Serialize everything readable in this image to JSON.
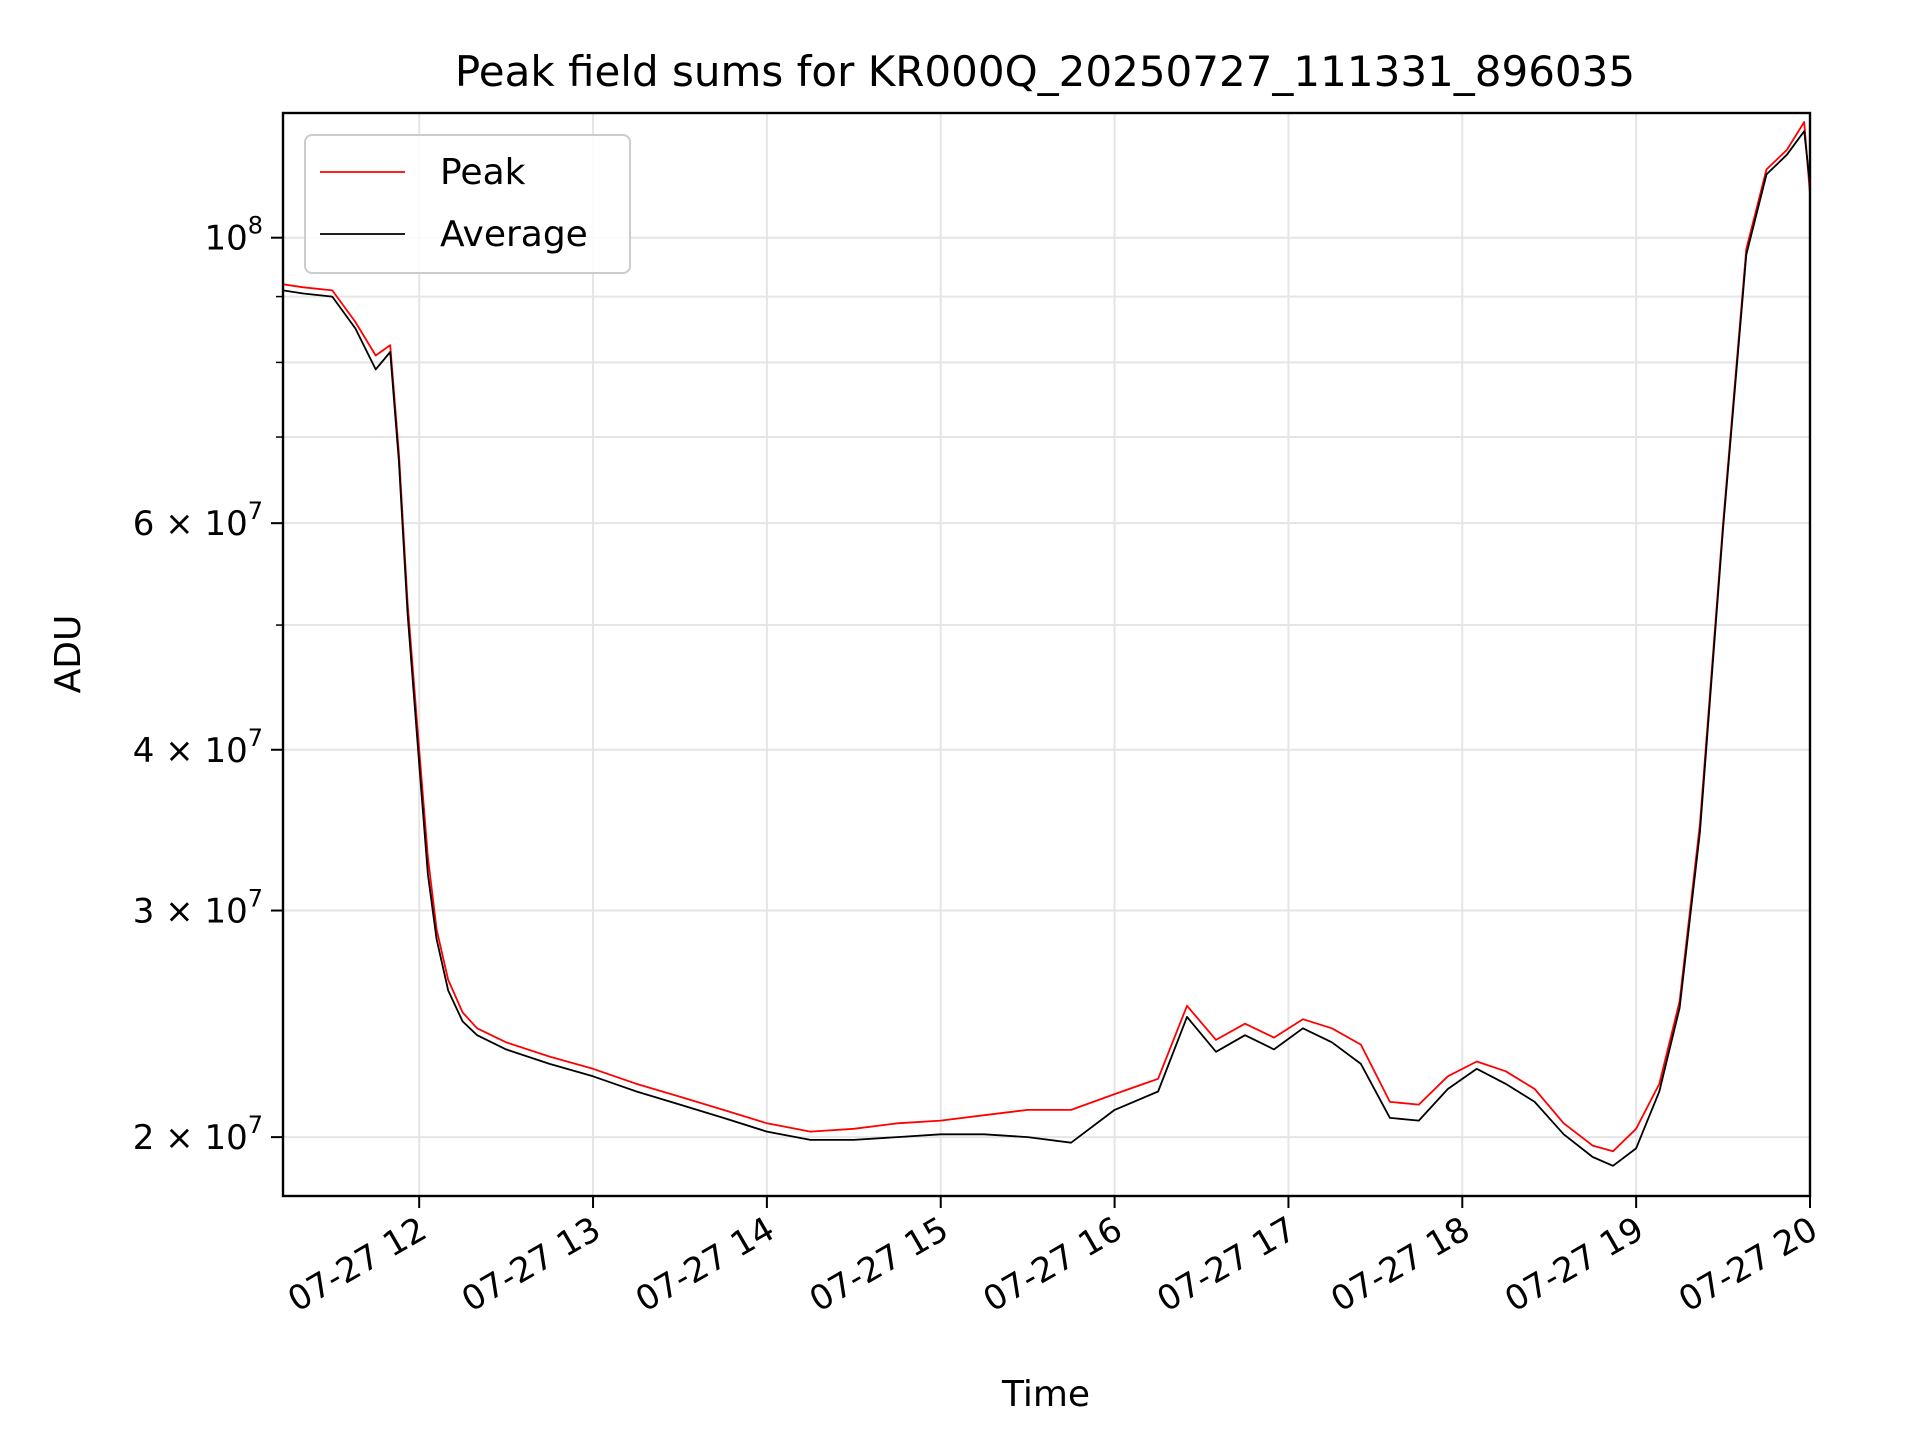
{
  "chart_data": {
    "type": "line",
    "title": "Peak field sums for KR000Q_20250727_111331_896035",
    "xlabel": "Time",
    "ylabel": "ADU",
    "yscale": "log",
    "grid": true,
    "legend_placement": "top-left",
    "xlim": [
      "2025-07-27T11:13",
      "2025-07-27T20:00"
    ],
    "ylim": [
      18000000,
      125000000
    ],
    "x_ticks": [
      "2025-07-27T12:00",
      "2025-07-27T13:00",
      "2025-07-27T14:00",
      "2025-07-27T15:00",
      "2025-07-27T16:00",
      "2025-07-27T17:00",
      "2025-07-27T18:00",
      "2025-07-27T19:00",
      "2025-07-27T20:00"
    ],
    "x_tick_labels": [
      "07-27 12",
      "07-27 13",
      "07-27 14",
      "07-27 15",
      "07-27 16",
      "07-27 17",
      "07-27 18",
      "07-27 19",
      "07-27 20"
    ],
    "y_ticks": [
      {
        "value": 20000000,
        "mantissa": "2",
        "exponent": "7"
      },
      {
        "value": 30000000,
        "mantissa": "3",
        "exponent": "7"
      },
      {
        "value": 40000000,
        "mantissa": "4",
        "exponent": "7"
      },
      {
        "value": 60000000,
        "mantissa": "6",
        "exponent": "7"
      },
      {
        "value": 100000000,
        "mantissa": "",
        "exponent": "8"
      }
    ],
    "y_minor_ticks": [
      50000000,
      70000000,
      80000000,
      90000000
    ],
    "series": [
      {
        "name": "Peak",
        "color": "#ff0000",
        "x": [
          "2025-07-27T11:13",
          "2025-07-27T11:20",
          "2025-07-27T11:30",
          "2025-07-27T11:38",
          "2025-07-27T11:45",
          "2025-07-27T11:50",
          "2025-07-27T11:53",
          "2025-07-27T11:56",
          "2025-07-27T12:00",
          "2025-07-27T12:03",
          "2025-07-27T12:06",
          "2025-07-27T12:10",
          "2025-07-27T12:15",
          "2025-07-27T12:20",
          "2025-07-27T12:30",
          "2025-07-27T12:45",
          "2025-07-27T13:00",
          "2025-07-27T13:15",
          "2025-07-27T13:30",
          "2025-07-27T13:45",
          "2025-07-27T14:00",
          "2025-07-27T14:15",
          "2025-07-27T14:30",
          "2025-07-27T14:45",
          "2025-07-27T15:00",
          "2025-07-27T15:15",
          "2025-07-27T15:30",
          "2025-07-27T15:45",
          "2025-07-27T16:00",
          "2025-07-27T16:15",
          "2025-07-27T16:25",
          "2025-07-27T16:35",
          "2025-07-27T16:45",
          "2025-07-27T16:55",
          "2025-07-27T17:05",
          "2025-07-27T17:15",
          "2025-07-27T17:25",
          "2025-07-27T17:35",
          "2025-07-27T17:45",
          "2025-07-27T17:55",
          "2025-07-27T18:05",
          "2025-07-27T18:15",
          "2025-07-27T18:25",
          "2025-07-27T18:35",
          "2025-07-27T18:45",
          "2025-07-27T18:52",
          "2025-07-27T19:00",
          "2025-07-27T19:08",
          "2025-07-27T19:15",
          "2025-07-27T19:22",
          "2025-07-27T19:30",
          "2025-07-27T19:38",
          "2025-07-27T19:45",
          "2025-07-27T19:52",
          "2025-07-27T19:58",
          "2025-07-27T20:00"
        ],
        "values": [
          92000000,
          91500000,
          91000000,
          86000000,
          81000000,
          82500000,
          68000000,
          52000000,
          40000000,
          33000000,
          29000000,
          26500000,
          25000000,
          24300000,
          23700000,
          23100000,
          22600000,
          22000000,
          21500000,
          21000000,
          20500000,
          20200000,
          20300000,
          20500000,
          20600000,
          20800000,
          21000000,
          21000000,
          21600000,
          22200000,
          25300000,
          23800000,
          24500000,
          23900000,
          24700000,
          24300000,
          23600000,
          21300000,
          21200000,
          22300000,
          22900000,
          22500000,
          21800000,
          20500000,
          19700000,
          19500000,
          20300000,
          22000000,
          25500000,
          35000000,
          60000000,
          98000000,
          113000000,
          117000000,
          123000000,
          108000000
        ]
      },
      {
        "name": "Average",
        "color": "#000000",
        "x": [
          "2025-07-27T11:13",
          "2025-07-27T11:20",
          "2025-07-27T11:30",
          "2025-07-27T11:38",
          "2025-07-27T11:45",
          "2025-07-27T11:50",
          "2025-07-27T11:53",
          "2025-07-27T11:56",
          "2025-07-27T12:00",
          "2025-07-27T12:03",
          "2025-07-27T12:06",
          "2025-07-27T12:10",
          "2025-07-27T12:15",
          "2025-07-27T12:20",
          "2025-07-27T12:30",
          "2025-07-27T12:45",
          "2025-07-27T13:00",
          "2025-07-27T13:15",
          "2025-07-27T13:30",
          "2025-07-27T13:45",
          "2025-07-27T14:00",
          "2025-07-27T14:15",
          "2025-07-27T14:30",
          "2025-07-27T14:45",
          "2025-07-27T15:00",
          "2025-07-27T15:15",
          "2025-07-27T15:30",
          "2025-07-27T15:45",
          "2025-07-27T16:00",
          "2025-07-27T16:15",
          "2025-07-27T16:25",
          "2025-07-27T16:35",
          "2025-07-27T16:45",
          "2025-07-27T16:55",
          "2025-07-27T17:05",
          "2025-07-27T17:15",
          "2025-07-27T17:25",
          "2025-07-27T17:35",
          "2025-07-27T17:45",
          "2025-07-27T17:55",
          "2025-07-27T18:05",
          "2025-07-27T18:15",
          "2025-07-27T18:25",
          "2025-07-27T18:35",
          "2025-07-27T18:45",
          "2025-07-27T18:52",
          "2025-07-27T19:00",
          "2025-07-27T19:08",
          "2025-07-27T19:15",
          "2025-07-27T19:22",
          "2025-07-27T19:30",
          "2025-07-27T19:38",
          "2025-07-27T19:45",
          "2025-07-27T19:52",
          "2025-07-27T19:58",
          "2025-07-27T20:00"
        ],
        "values": [
          91000000,
          90500000,
          90000000,
          85000000,
          79000000,
          81500000,
          67000000,
          51000000,
          39000000,
          32000000,
          28500000,
          26000000,
          24600000,
          24000000,
          23400000,
          22800000,
          22300000,
          21700000,
          21200000,
          20700000,
          20200000,
          19900000,
          19900000,
          20000000,
          20100000,
          20100000,
          20000000,
          19800000,
          21000000,
          21700000,
          24800000,
          23300000,
          24000000,
          23400000,
          24300000,
          23700000,
          22800000,
          20700000,
          20600000,
          21800000,
          22600000,
          22000000,
          21300000,
          20100000,
          19300000,
          19000000,
          19600000,
          21700000,
          25200000,
          34500000,
          59500000,
          97000000,
          112000000,
          116000000,
          121000000,
          110000000
        ]
      }
    ]
  }
}
